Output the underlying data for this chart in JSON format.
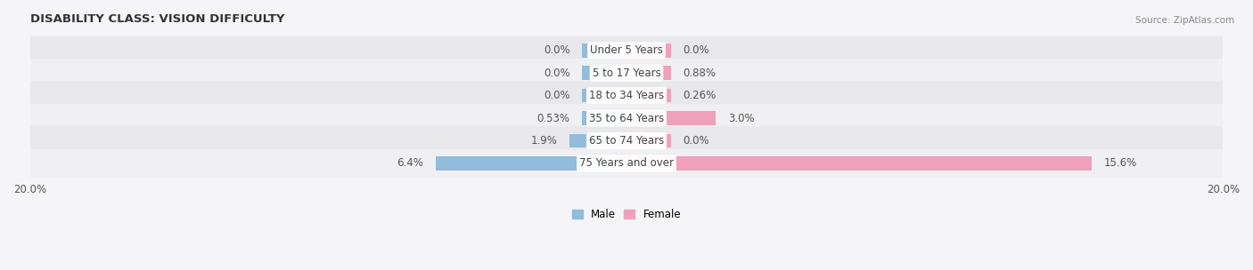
{
  "title": "DISABILITY CLASS: VISION DIFFICULTY",
  "source": "Source: ZipAtlas.com",
  "categories": [
    "Under 5 Years",
    "5 to 17 Years",
    "18 to 34 Years",
    "35 to 64 Years",
    "65 to 74 Years",
    "75 Years and over"
  ],
  "male_values": [
    0.0,
    0.0,
    0.0,
    0.53,
    1.9,
    6.4
  ],
  "female_values": [
    0.0,
    0.88,
    0.26,
    3.0,
    0.0,
    15.6
  ],
  "male_color": "#92bcd9",
  "female_color": "#f0a0ba",
  "row_bg_even": "#e8e8ea",
  "row_bg_odd": "#f0f0f2",
  "axis_max": 20.0,
  "label_fontsize": 8.5,
  "title_fontsize": 9.5,
  "source_fontsize": 7.5,
  "bar_height": 0.62,
  "min_bar_width": 1.5,
  "figsize": [
    14.06,
    3.04
  ],
  "dpi": 100,
  "bg_color": "#f5f5f7"
}
